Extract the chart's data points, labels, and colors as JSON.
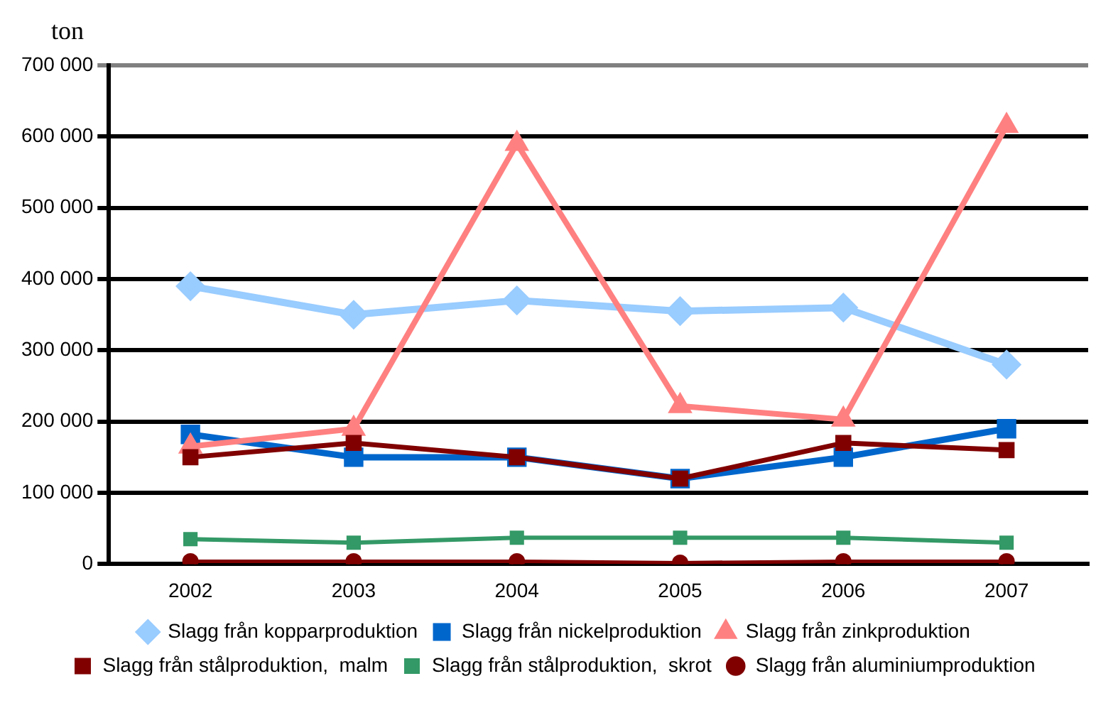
{
  "chart_data": {
    "type": "line",
    "ylabel": "ton",
    "categories": [
      "2002",
      "2003",
      "2004",
      "2005",
      "2006",
      "2007"
    ],
    "ylim": [
      0,
      700000
    ],
    "yticks": [
      {
        "value": 0,
        "label": "0"
      },
      {
        "value": 100000,
        "label": "100 000"
      },
      {
        "value": 200000,
        "label": "200 000"
      },
      {
        "value": 300000,
        "label": "300 000"
      },
      {
        "value": 400000,
        "label": "400 000"
      },
      {
        "value": 500000,
        "label": "500 000"
      },
      {
        "value": 600000,
        "label": "600 000"
      },
      {
        "value": 700000,
        "label": "700 000"
      }
    ],
    "grid": "y",
    "legend": "bottom",
    "line_style": "solid",
    "series": [
      {
        "name": "Slagg från kopparproduktion",
        "color": "#99ccff",
        "marker": "diamond",
        "values": [
          390000,
          350000,
          370000,
          355000,
          360000,
          280000
        ]
      },
      {
        "name": "Slagg från nickelproduktion",
        "color": "#0066cc",
        "marker": "square",
        "values": [
          182000,
          150000,
          150000,
          120000,
          150000,
          190000
        ]
      },
      {
        "name": "Slagg från zinkproduktion",
        "color": "#ff8080",
        "marker": "triangle",
        "values": [
          165000,
          190000,
          590000,
          222000,
          203000,
          615000
        ]
      },
      {
        "name": "Slagg från stålproduktion,  malm",
        "color": "#800000",
        "marker": "square",
        "values": [
          150000,
          170000,
          150000,
          120000,
          170000,
          160000
        ]
      },
      {
        "name": "Slagg från stålproduktion,  skrot",
        "color": "#339966",
        "marker": "square",
        "values": [
          35000,
          30000,
          37000,
          37000,
          37000,
          30000
        ]
      },
      {
        "name": "Slagg från aluminiumproduktion",
        "color": "#800000",
        "marker": "circle",
        "values": [
          4000,
          4000,
          4000,
          2000,
          4000,
          4000
        ]
      }
    ]
  }
}
